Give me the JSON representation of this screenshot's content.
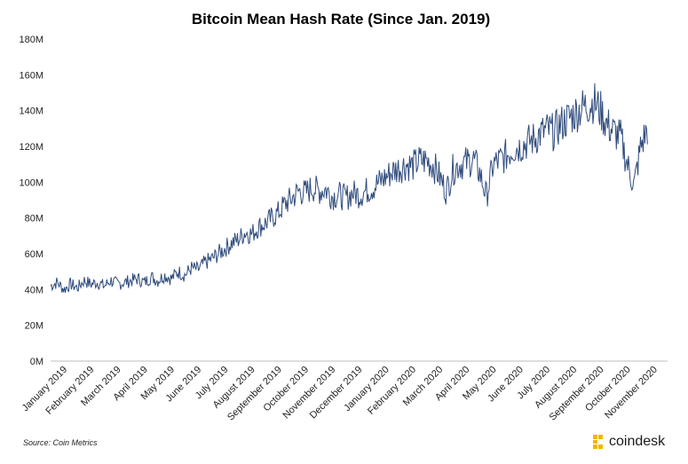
{
  "chart_data": {
    "type": "line",
    "title": "Bitcoin Mean Hash Rate (Since Jan. 2019)",
    "xlabel": "",
    "ylabel": "",
    "ylim": [
      0,
      180
    ],
    "y_unit": "M",
    "y_ticks": [
      "0M",
      "20M",
      "40M",
      "60M",
      "80M",
      "100M",
      "120M",
      "140M",
      "160M",
      "180M"
    ],
    "x_ticks": [
      "January 2019",
      "February 2019",
      "March 2019",
      "April 2019",
      "May 2019",
      "June 2019",
      "July 2019",
      "August 2019",
      "September 2019",
      "October 2019",
      "November 2019",
      "December 2019",
      "January 2020",
      "February 2020",
      "March 2020",
      "April 2020",
      "May 2020",
      "June 2020",
      "July 2020",
      "August 2020",
      "September 2020",
      "October 2020",
      "November 2020"
    ],
    "series": [
      {
        "name": "Mean Hash Rate (M)",
        "color": "#2f4b7c",
        "x": [
          0,
          0.25,
          0.5,
          0.75,
          1,
          1.25,
          1.5,
          1.75,
          2,
          2.25,
          2.5,
          2.75,
          3,
          3.25,
          3.5,
          3.75,
          4,
          4.25,
          4.5,
          4.75,
          5,
          5.25,
          5.5,
          5.75,
          6,
          6.25,
          6.5,
          6.75,
          7,
          7.25,
          7.5,
          7.75,
          8,
          8.25,
          8.5,
          8.75,
          9,
          9.25,
          9.5,
          9.75,
          10,
          10.25,
          10.5,
          10.75,
          11,
          11.25,
          11.5,
          11.75,
          12,
          12.25,
          12.5,
          12.75,
          13,
          13.25,
          13.5,
          13.75,
          14,
          14.25,
          14.5,
          14.75,
          15,
          15.25,
          15.5,
          15.75,
          16,
          16.25,
          16.5,
          16.75,
          17,
          17.25,
          17.5,
          17.75,
          18,
          18.25,
          18.5,
          18.75,
          19,
          19.25,
          19.5,
          19.75,
          20,
          20.25,
          20.5,
          20.75,
          21,
          21.25,
          21.5,
          21.75,
          22,
          22.25
        ],
        "values": [
          42,
          44,
          40,
          43,
          41,
          45,
          43,
          44,
          42,
          45,
          43,
          44,
          45,
          46,
          44,
          47,
          45,
          48,
          46,
          50,
          48,
          52,
          51,
          55,
          57,
          60,
          63,
          66,
          68,
          72,
          71,
          75,
          77,
          80,
          83,
          88,
          91,
          95,
          94,
          97,
          95,
          96,
          92,
          93,
          91,
          94,
          93,
          95,
          97,
          100,
          103,
          106,
          108,
          110,
          109,
          112,
          112,
          110,
          103,
          95,
          107,
          110,
          111,
          113,
          105,
          92,
          110,
          112,
          115,
          119,
          120,
          122,
          124,
          127,
          129,
          128,
          132,
          135,
          138,
          141,
          143,
          145,
          140,
          132,
          128,
          125,
          110,
          98,
          120,
          130
        ]
      }
    ],
    "source": "Source: Coin Metrics",
    "brand": "coindesk"
  }
}
